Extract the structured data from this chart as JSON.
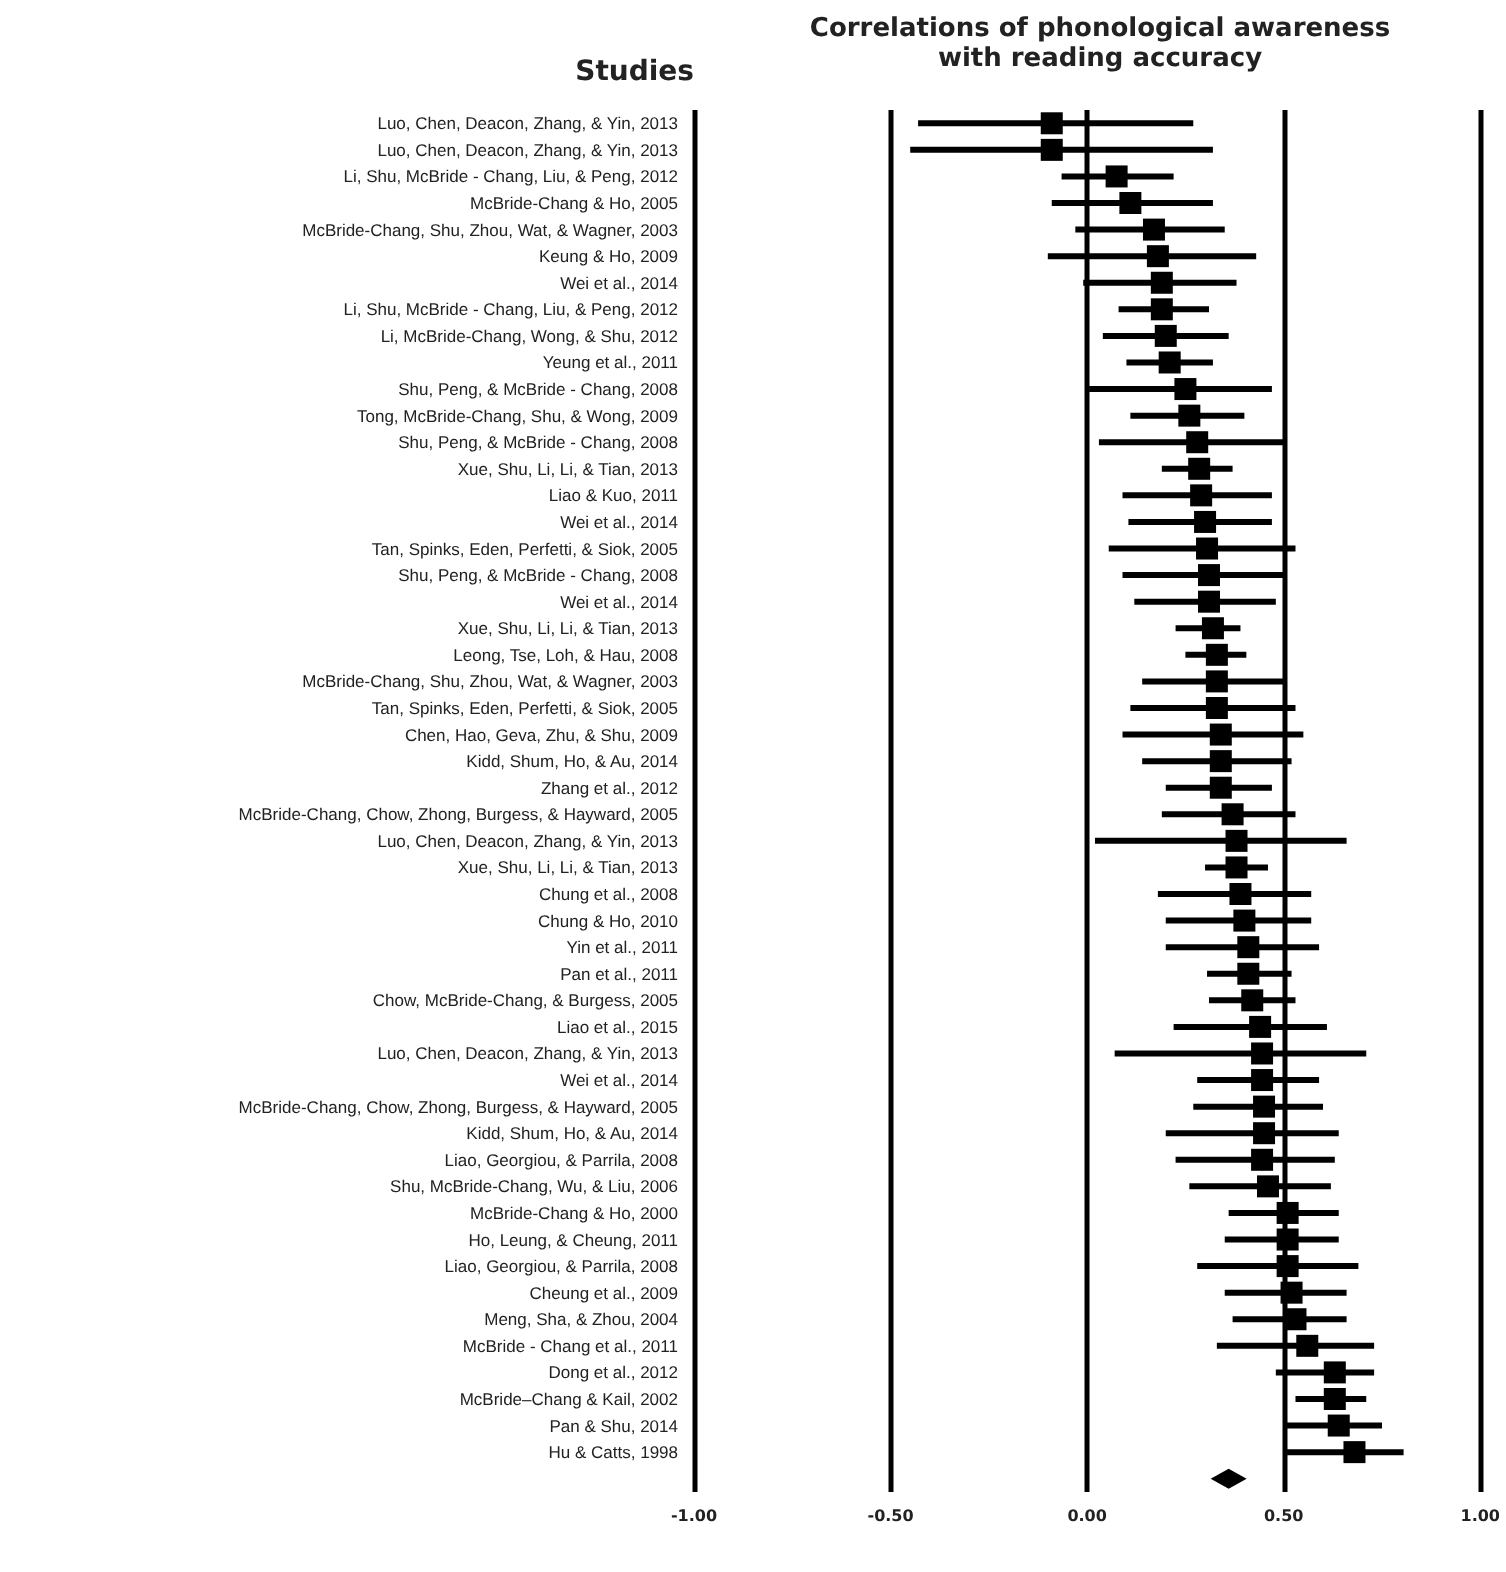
{
  "chart_data": {
    "type": "scatter",
    "orientation": "horizontal",
    "title": "Correlations of phonological awareness\nwith reading accuracy",
    "ylabel": "Studies",
    "categories": [
      "Luo, Chen, Deacon, Zhang, & Yin, 2013",
      "Luo, Chen, Deacon, Zhang, & Yin, 2013",
      "Li, Shu, McBride - Chang, Liu, & Peng, 2012",
      "McBride-Chang & Ho, 2005",
      "McBride-Chang, Shu, Zhou, Wat, & Wagner, 2003",
      "Keung & Ho, 2009",
      "Wei et al., 2014",
      "Li, Shu, McBride - Chang, Liu, & Peng, 2012",
      "Li, McBride-Chang, Wong, & Shu, 2012",
      "Yeung et al., 2011",
      "Shu, Peng, & McBride - Chang, 2008",
      "Tong, McBride-Chang, Shu, & Wong, 2009",
      "Shu, Peng, & McBride - Chang, 2008",
      "Xue, Shu, Li, Li, & Tian, 2013",
      "Liao & Kuo, 2011",
      "Wei et al., 2014",
      "Tan, Spinks, Eden, Perfetti, & Siok, 2005",
      "Shu, Peng, & McBride - Chang, 2008",
      "Wei et al., 2014",
      "Xue, Shu, Li, Li, & Tian, 2013",
      "Leong, Tse, Loh, & Hau, 2008",
      "McBride-Chang, Shu, Zhou, Wat, & Wagner, 2003",
      "Tan, Spinks, Eden, Perfetti, & Siok, 2005",
      "Chen, Hao, Geva, Zhu, & Shu, 2009",
      "Kidd, Shum, Ho, & Au, 2014",
      "Zhang et al., 2012",
      "McBride-Chang, Chow, Zhong, Burgess, & Hayward, 2005",
      "Luo, Chen, Deacon, Zhang, & Yin, 2013",
      "Xue, Shu, Li, Li, & Tian, 2013",
      "Chung et al., 2008",
      "Chung & Ho, 2010",
      "Yin et al., 2011",
      "Pan et al., 2011",
      "Chow, McBride-Chang, & Burgess, 2005",
      "Liao et al., 2015",
      "Luo, Chen, Deacon, Zhang, & Yin, 2013",
      "Wei et al., 2014",
      "McBride-Chang, Chow, Zhong, Burgess, & Hayward, 2005",
      "Kidd, Shum, Ho, & Au, 2014",
      "Liao, Georgiou, & Parrila, 2008",
      "Shu, McBride-Chang, Wu, & Liu, 2006",
      "McBride-Chang & Ho, 2000",
      "Ho, Leung, & Cheung, 2011",
      "Liao, Georgiou, & Parrila, 2008",
      "Cheung et al., 2009",
      "Meng, Sha, & Zhou, 2004",
      "McBride - Chang et al., 2011",
      "Dong et al., 2012",
      "McBride–Chang & Kail, 2002",
      "Pan & Shu, 2014",
      "Hu & Catts, 1998",
      null
    ],
    "series": [
      {
        "color": "#000000",
        "marker": "square",
        "values": [
          -0.09,
          -0.09,
          0.075,
          0.11,
          0.17,
          0.18,
          0.19,
          0.19,
          0.2,
          0.21,
          0.25,
          0.26,
          0.28,
          0.285,
          0.29,
          0.3,
          0.305,
          0.31,
          0.31,
          0.32,
          0.33,
          0.33,
          0.33,
          0.34,
          0.34,
          0.34,
          0.37,
          0.38,
          0.38,
          0.39,
          0.4,
          0.41,
          0.41,
          0.42,
          0.44,
          0.445,
          0.445,
          0.45,
          0.45,
          0.445,
          0.46,
          0.51,
          0.51,
          0.51,
          0.52,
          0.53,
          0.56,
          0.63,
          0.63,
          0.64,
          0.68,
          null
        ],
        "errors": [
          [
            -0.43,
            0.27
          ],
          [
            -0.45,
            0.32
          ],
          [
            -0.065,
            0.22
          ],
          [
            -0.09,
            0.32
          ],
          [
            -0.03,
            0.35
          ],
          [
            -0.1,
            0.43
          ],
          [
            -0.01,
            0.38
          ],
          [
            0.08,
            0.31
          ],
          [
            0.04,
            0.36
          ],
          [
            0.1,
            0.32
          ],
          [
            0.005,
            0.47
          ],
          [
            0.11,
            0.4
          ],
          [
            0.03,
            0.5
          ],
          [
            0.19,
            0.37
          ],
          [
            0.09,
            0.47
          ],
          [
            0.105,
            0.47
          ],
          [
            0.055,
            0.53
          ],
          [
            0.09,
            0.5
          ],
          [
            0.12,
            0.48
          ],
          [
            0.225,
            0.39
          ],
          [
            0.25,
            0.405
          ],
          [
            0.14,
            0.5
          ],
          [
            0.11,
            0.53
          ],
          [
            0.09,
            0.55
          ],
          [
            0.14,
            0.52
          ],
          [
            0.2,
            0.47
          ],
          [
            0.19,
            0.53
          ],
          [
            0.02,
            0.66
          ],
          [
            0.3,
            0.46
          ],
          [
            0.18,
            0.57
          ],
          [
            0.2,
            0.57
          ],
          [
            0.2,
            0.59
          ],
          [
            0.305,
            0.52
          ],
          [
            0.31,
            0.53
          ],
          [
            0.22,
            0.61
          ],
          [
            0.07,
            0.71
          ],
          [
            0.28,
            0.59
          ],
          [
            0.27,
            0.6
          ],
          [
            0.2,
            0.64
          ],
          [
            0.225,
            0.63
          ],
          [
            0.26,
            0.62
          ],
          [
            0.36,
            0.64
          ],
          [
            0.35,
            0.64
          ],
          [
            0.28,
            0.69
          ],
          [
            0.35,
            0.66
          ],
          [
            0.37,
            0.66
          ],
          [
            0.33,
            0.73
          ],
          [
            0.48,
            0.73
          ],
          [
            0.53,
            0.71
          ],
          [
            0.505,
            0.75
          ],
          [
            0.505,
            0.805
          ],
          null
        ]
      },
      {
        "color": "#000000",
        "marker": "diamond",
        "values": [
          null,
          null,
          null,
          null,
          null,
          null,
          null,
          null,
          null,
          null,
          null,
          null,
          null,
          null,
          null,
          null,
          null,
          null,
          null,
          null,
          null,
          null,
          null,
          null,
          null,
          null,
          null,
          null,
          null,
          null,
          null,
          null,
          null,
          null,
          null,
          null,
          null,
          null,
          null,
          null,
          null,
          null,
          null,
          null,
          null,
          null,
          null,
          null,
          null,
          null,
          null,
          0.36
        ]
      }
    ],
    "xlim": [
      -1,
      1
    ],
    "xticks": [
      {
        "value": -1,
        "label": "-1.00"
      },
      {
        "value": -0.5,
        "label": "-0.50"
      },
      {
        "value": 0,
        "label": "0.00"
      },
      {
        "value": 0.5,
        "label": "0.50"
      },
      {
        "value": 1,
        "label": "1.00"
      }
    ],
    "grid": "x"
  }
}
